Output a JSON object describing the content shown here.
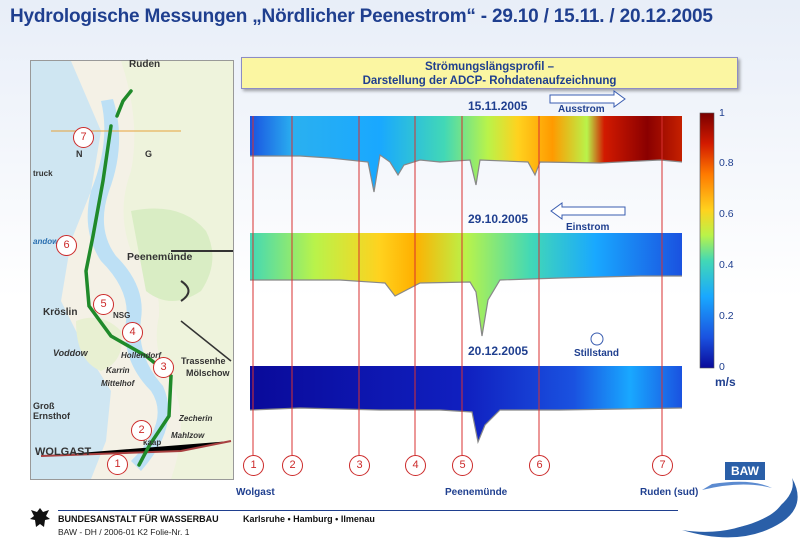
{
  "title": "Hydrologische Messungen „Nördlicher Peenestrom“ - 29.10 / 15.11. / 20.12.2005",
  "panel": {
    "line1": "Strömungslängsprofil –",
    "line2": "Darstellung der ADCP- Rohdatenaufzeichnung"
  },
  "profiles": [
    {
      "date": "15.11.2005",
      "note": "Ausstrom"
    },
    {
      "date": "29.10.2005",
      "note": "Einstrom"
    },
    {
      "date": "20.12.2005",
      "note": "Stillstand"
    }
  ],
  "colorbar": {
    "ticks": [
      "1",
      "0.8",
      "0.6",
      "0.4",
      "0.2",
      "0"
    ],
    "unit": "m/s",
    "colors": [
      "#7a0000",
      "#d21a00",
      "#ff7a00",
      "#ffd21e",
      "#b9f34a",
      "#42d8b6",
      "#19a8ff",
      "#1a52e0",
      "#0a0a9a"
    ]
  },
  "stations": [
    "1",
    "2",
    "3",
    "4",
    "5",
    "6",
    "7"
  ],
  "station_places": {
    "wolgast": "Wolgast",
    "peenemuende": "Peenemünde",
    "ruden": "Ruden (sud)"
  },
  "map": {
    "stations": [
      "7",
      "6",
      "5",
      "4",
      "3",
      "2",
      "1"
    ],
    "places": {
      "ruden": "Ruden",
      "peenemuende": "Peenemünde",
      "kroeslin": "Kröslin",
      "wolgast": "WOLGAST",
      "trassenheide": "Trassenhe",
      "moelschow": "Mölschow",
      "vodddow": "Voddow",
      "gross": "Groß",
      "ernsthof": "Ernsthof",
      "karrin": "Karrin",
      "hollendorf": "Hollendorf",
      "zecherin": "Zecherin",
      "mahlzow": "Mahlzow",
      "spandower": "andower",
      "nsg": "NSG",
      "mittelhof": "Mittelhof",
      "katap": "kaap",
      "n": "N",
      "g": "G",
      "truck": "truck"
    }
  },
  "footer": {
    "org": "BUNDESANSTALT FÜR WASSERBAU",
    "cities": "Karlsruhe  •  Hamburg  •  Ilmenau",
    "ref": "BAW - DH /  2006-01 K2  Folie-Nr. 1",
    "logo": "BAW"
  }
}
